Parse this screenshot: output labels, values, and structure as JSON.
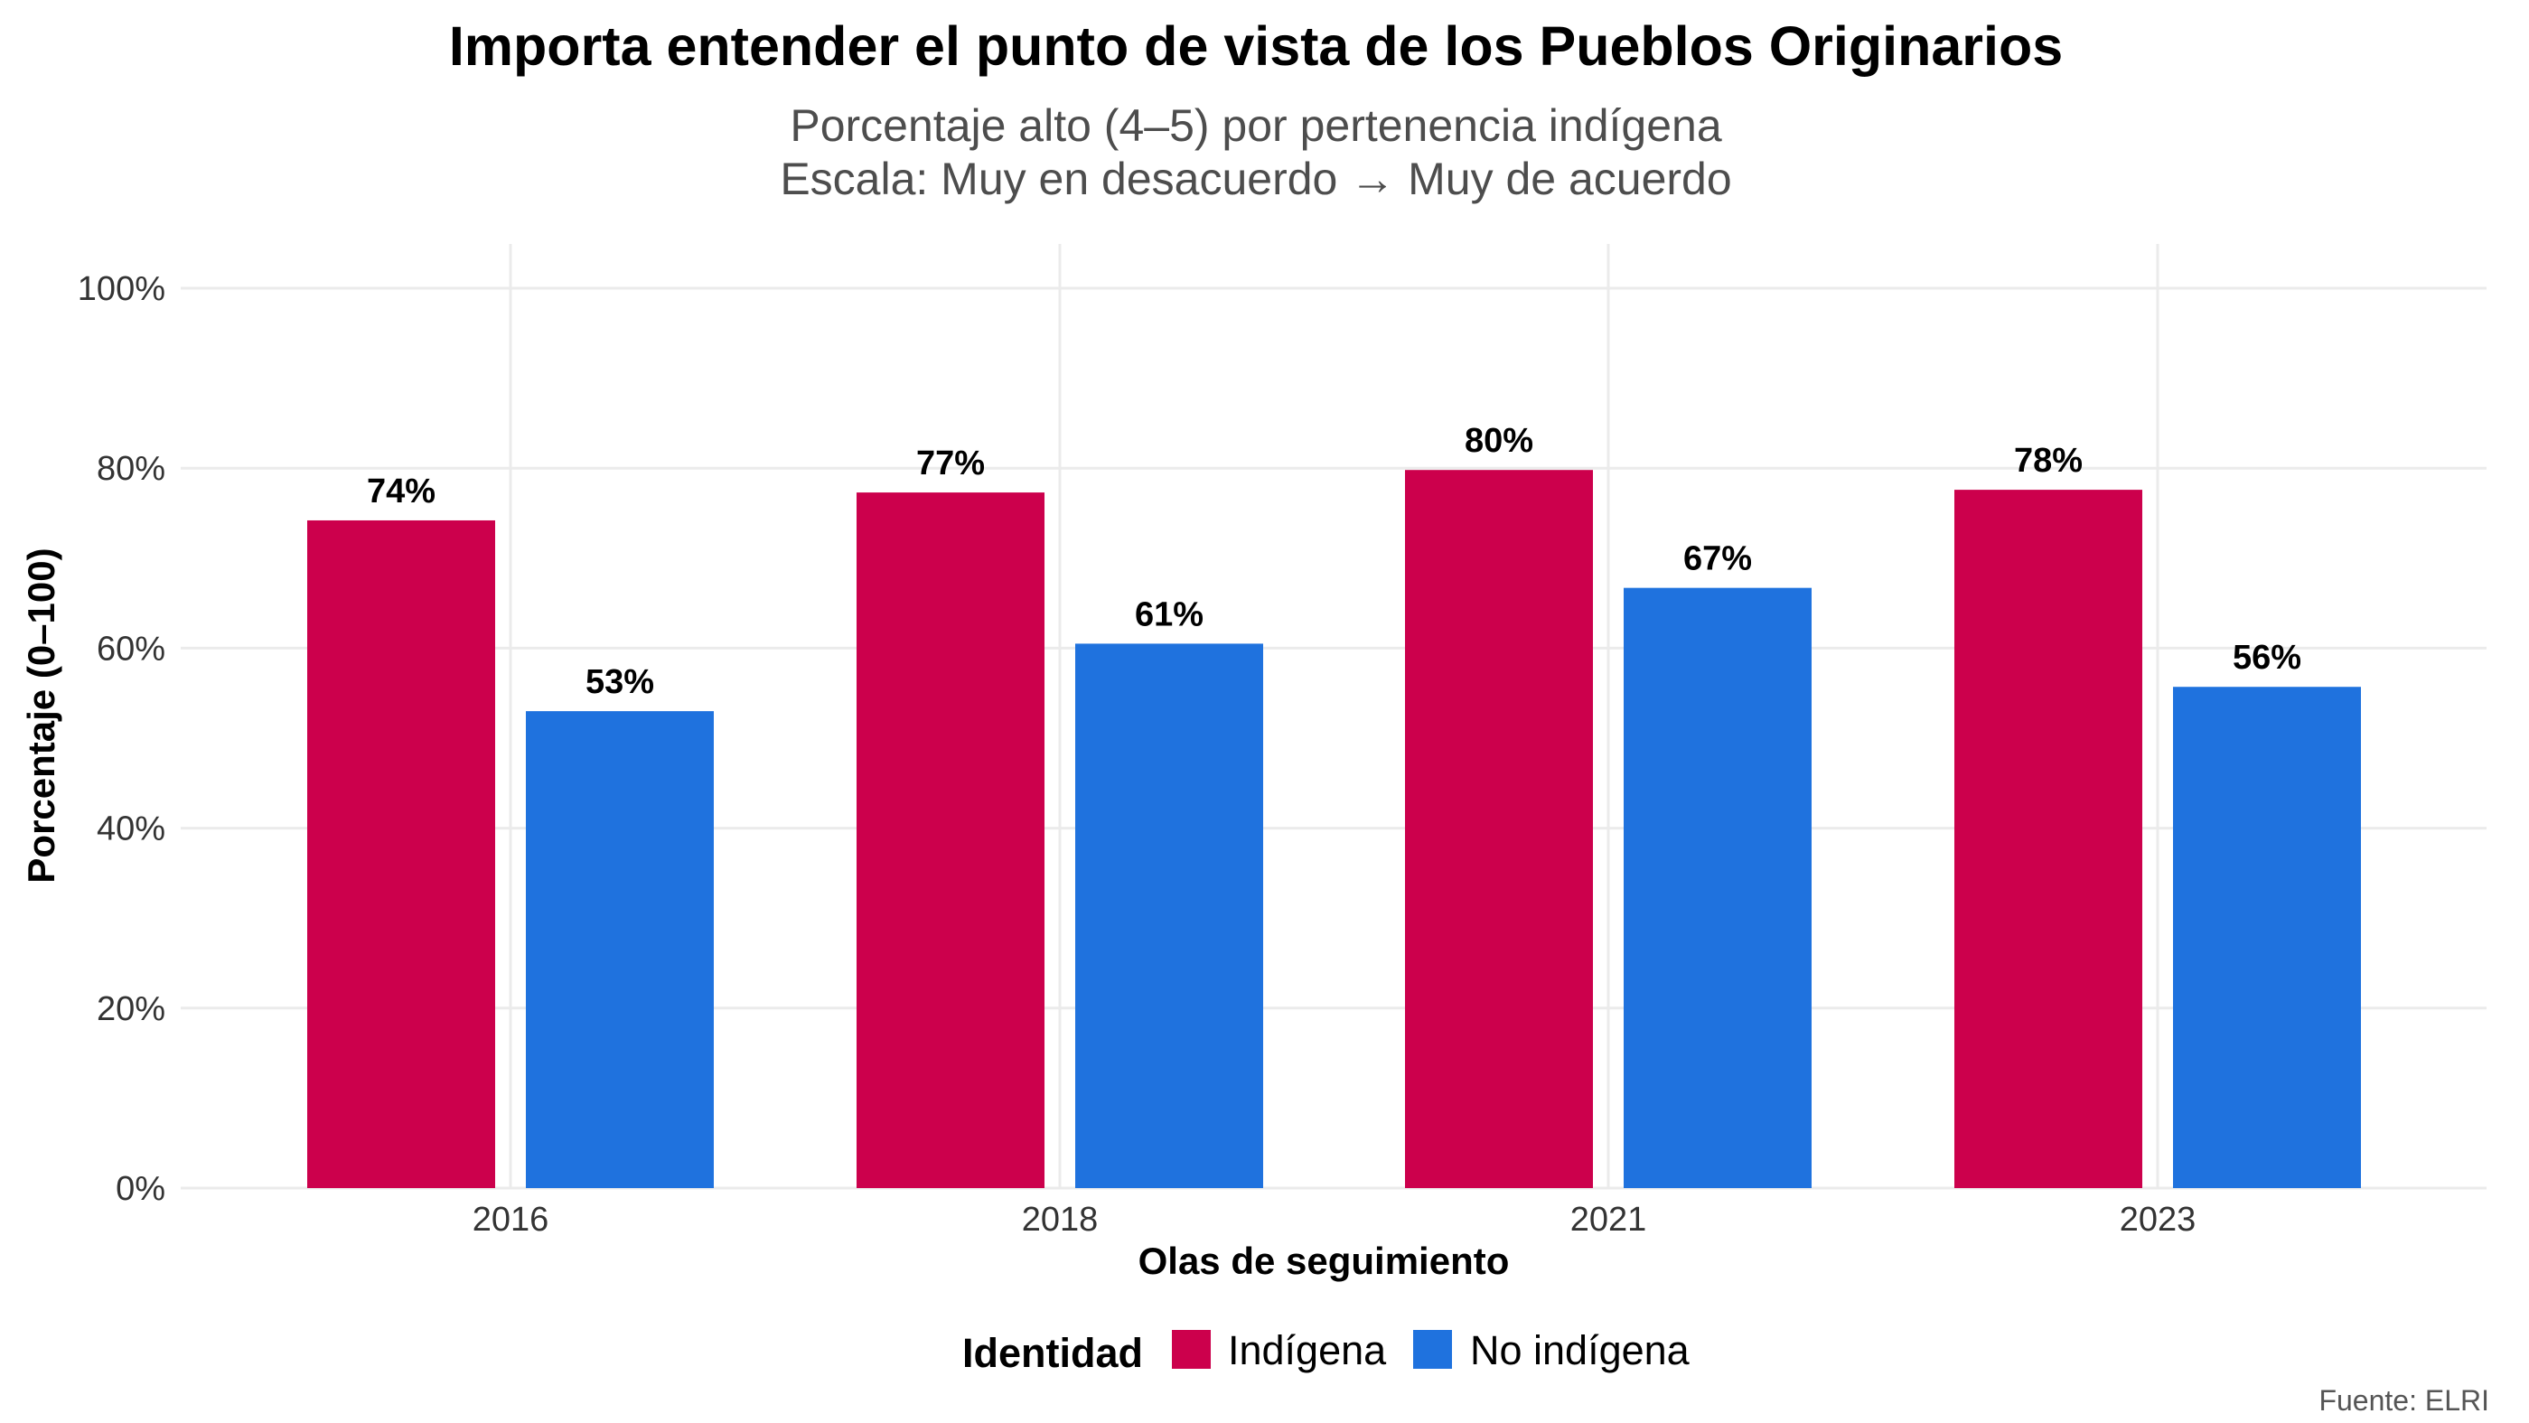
{
  "chart_data": {
    "type": "bar",
    "title": "Importa entender el punto de vista de los Pueblos Originarios",
    "subtitle_line1": "Porcentaje alto (4–5) por pertenencia indígena",
    "subtitle_line2": "Escala: Muy en desacuerdo → Muy de acuerdo",
    "xlabel": "Olas de seguimiento",
    "ylabel": "Porcentaje (0–100)",
    "caption": "Fuente: ELRI",
    "categories": [
      "2016",
      "2018",
      "2021",
      "2023"
    ],
    "ylim": [
      0,
      100
    ],
    "yticks": [
      0,
      20,
      40,
      60,
      80,
      100
    ],
    "ytick_labels": [
      "0%",
      "20%",
      "40%",
      "60%",
      "80%",
      "100%"
    ],
    "grid": true,
    "legend": {
      "title": "Identidad",
      "placement": "bottom"
    },
    "series": [
      {
        "name": "Indígena",
        "color": "#cc004c",
        "values": [
          74.2,
          77.3,
          79.8,
          77.6
        ],
        "labels": [
          "74%",
          "77%",
          "80%",
          "78%"
        ]
      },
      {
        "name": "No indígena",
        "color": "#1f72de",
        "values": [
          53.0,
          60.5,
          66.7,
          55.7
        ],
        "labels": [
          "53%",
          "61%",
          "67%",
          "56%"
        ]
      }
    ]
  }
}
